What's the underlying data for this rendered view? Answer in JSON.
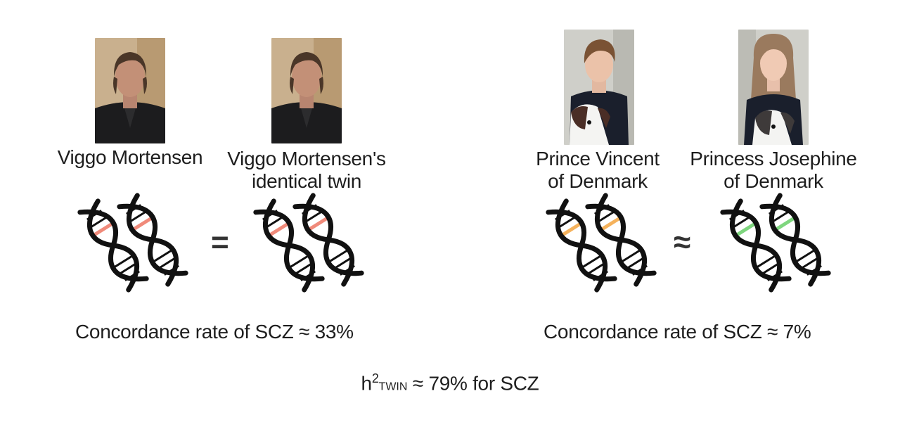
{
  "people": {
    "viggo": {
      "name_lines": [
        "Viggo Mortensen"
      ]
    },
    "viggo_twin": {
      "name_lines": [
        "Viggo Mortensen's",
        "identical twin"
      ]
    },
    "vincent": {
      "name_lines": [
        "Prince Vincent",
        "of Denmark"
      ]
    },
    "josephine": {
      "name_lines": [
        "Princess Josephine",
        "of Denmark"
      ]
    }
  },
  "comparisons": {
    "identical": {
      "operator": "=",
      "rate_text": "Concordance rate of SCZ ≈ 33%"
    },
    "fraternal": {
      "operator": "≈",
      "rate_text": "Concordance rate of SCZ ≈ 7%"
    }
  },
  "formula": {
    "h": "h",
    "sup": "2",
    "sub": "TWIN",
    "rest": " ≈ 79% for SCZ"
  },
  "colors": {
    "identical_highlight": "#f08a7a",
    "vincent_highlight": "#f5b25c",
    "josephine_highlight": "#7ed67e",
    "dna_stroke": "#111111"
  },
  "icons": [
    "portrait-photo",
    "dna-double-helix-icon",
    "equals-sign",
    "approximately-equal-sign"
  ]
}
